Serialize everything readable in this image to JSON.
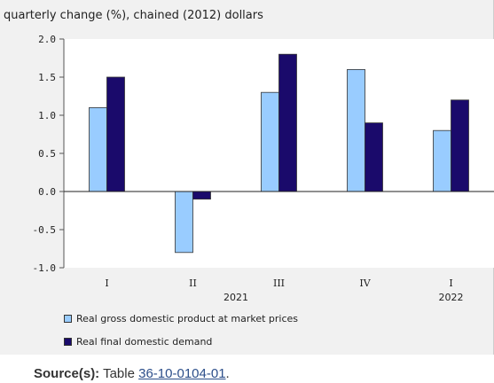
{
  "figure": {
    "units_label": "quarterly change (%), chained (2012) dollars"
  },
  "chart_data": {
    "type": "bar",
    "title": "",
    "xlabel": "",
    "ylabel": "quarterly change (%), chained (2012) dollars",
    "categories": [
      "I",
      "II",
      "III",
      "IV",
      "I"
    ],
    "year_labels": [
      "2021",
      "2022"
    ],
    "ylim": [
      -1.0,
      2.0
    ],
    "yticks": [
      2.0,
      1.5,
      1.0,
      0.5,
      0.0,
      -0.5,
      -1.0
    ],
    "ytick_labels": [
      "2.0",
      "1.5",
      "1.0",
      "0.5",
      "0.0",
      "-0.5",
      "-1.0"
    ],
    "grid": false,
    "legend_position": "bottom",
    "series": [
      {
        "name": "Real gross domestic product at market prices",
        "color": "#99ccff",
        "values": [
          1.1,
          -0.8,
          1.3,
          1.6,
          0.8
        ]
      },
      {
        "name": "Real final domestic demand",
        "color": "#1a0a6b",
        "values": [
          1.5,
          -0.1,
          1.8,
          0.9,
          1.2
        ]
      }
    ]
  },
  "source": {
    "label": "Source(s):",
    "text": "Table",
    "link_text": "36-10-0104-01",
    "suffix": "."
  }
}
